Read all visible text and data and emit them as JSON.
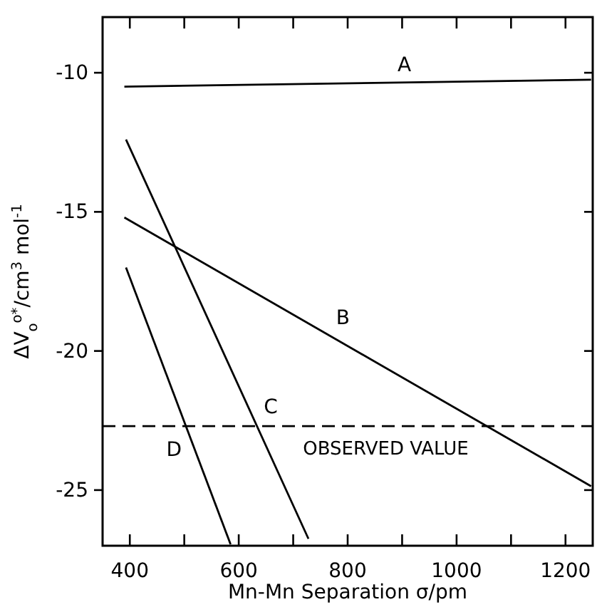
{
  "chart_data": {
    "type": "line",
    "xlabel": "Mn-Mn Separation σ/pm",
    "ylabel": "ΔV$_{o}$$^{o*}$/cm$^{3}$ mol$^{-1}$",
    "xlim": [
      350,
      1250
    ],
    "ylim": [
      -27,
      -8
    ],
    "xticks": [
      400,
      {
        "value": 500,
        "label": null
      },
      600,
      {
        "value": 700,
        "label": null
      },
      800,
      {
        "value": 900,
        "label": null
      },
      1000,
      {
        "value": 1100,
        "label": null
      },
      1200
    ],
    "yticks": [
      -10,
      -15,
      -20,
      -25
    ],
    "series": [
      {
        "name": "A",
        "color": "#000000",
        "x": [
          390,
          1247
        ],
        "values": [
          -10.5,
          -10.25
        ]
      },
      {
        "name": "B",
        "color": "#000000",
        "x": [
          390,
          1247
        ],
        "values": [
          -15.2,
          -24.86
        ]
      },
      {
        "name": "C",
        "color": "#000000",
        "x": [
          393,
          728
        ],
        "values": [
          -12.4,
          -26.75
        ]
      },
      {
        "name": "D",
        "color": "#000000",
        "x": [
          393,
          585
        ],
        "values": [
          -17.0,
          -26.95
        ]
      }
    ],
    "ref_lines": [
      {
        "axis": "y",
        "value": -22.7,
        "label": "OBSERVED VALUE",
        "line_style": "dashed",
        "color": "#000000"
      }
    ],
    "grid": false,
    "legend": false,
    "marker": "none",
    "line_style": "solid"
  }
}
